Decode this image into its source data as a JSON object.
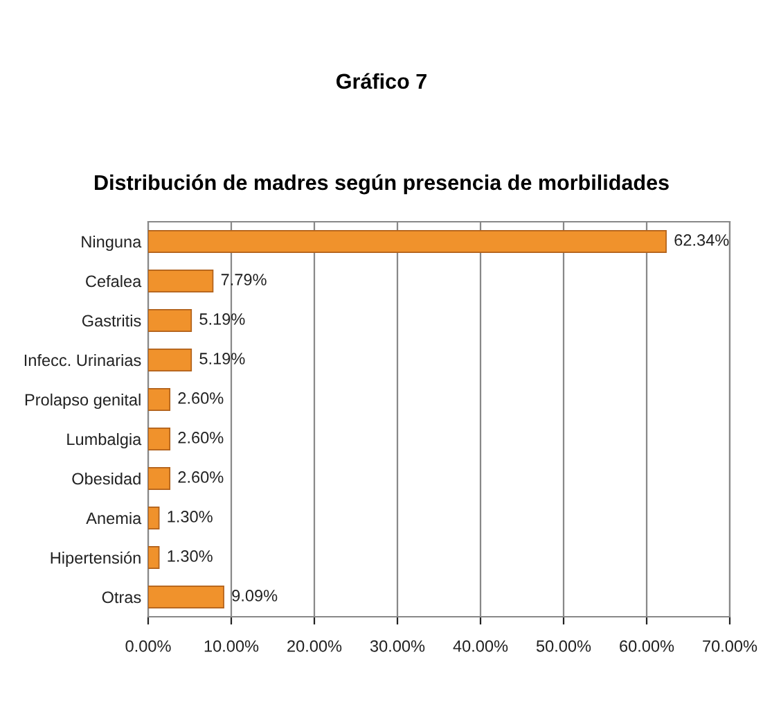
{
  "chart_data": {
    "type": "bar",
    "orientation": "horizontal",
    "title": "Gráfico 7",
    "subtitle": "Distribución de madres según presencia de morbilidades",
    "categories": [
      "Ninguna",
      "Cefalea",
      "Gastritis",
      "Infecc. Urinarias",
      "Prolapso genital",
      "Lumbalgia",
      "Obesidad",
      "Anemia",
      "Hipertensión",
      "Otras"
    ],
    "values": [
      62.34,
      7.79,
      5.19,
      5.19,
      2.6,
      2.6,
      2.6,
      1.3,
      1.3,
      9.09
    ],
    "value_labels": [
      "62.34%",
      "7.79%",
      "5.19%",
      "5.19%",
      "2.60%",
      "2.60%",
      "2.60%",
      "1.30%",
      "1.30%",
      "9.09%"
    ],
    "color": "#f0922c",
    "xlim": [
      0,
      70
    ],
    "xticks": [
      {
        "value": 0,
        "label": "0.00%"
      },
      {
        "value": 10,
        "label": "10.00%"
      },
      {
        "value": 20,
        "label": "20.00%"
      },
      {
        "value": 30,
        "label": "30.00%"
      },
      {
        "value": 40,
        "label": "40.00%"
      },
      {
        "value": 50,
        "label": "50.00%"
      },
      {
        "value": 60,
        "label": "60.00%"
      },
      {
        "value": 70,
        "label": "70.00%"
      }
    ],
    "grid": "x",
    "legend": false
  }
}
